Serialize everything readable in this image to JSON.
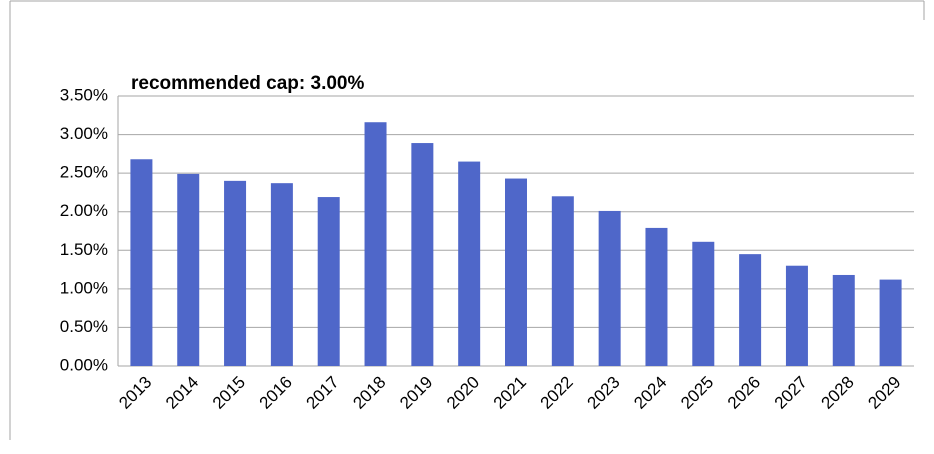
{
  "chart_data": {
    "type": "bar",
    "annotations": [
      "recommended cap: 3.00%"
    ],
    "categories": [
      "2013",
      "2014",
      "2015",
      "2016",
      "2017",
      "2018",
      "2019",
      "2020",
      "2021",
      "2022",
      "2023",
      "2024",
      "2025",
      "2026",
      "2027",
      "2028",
      "2029"
    ],
    "values": [
      2.68,
      2.49,
      2.4,
      2.37,
      2.19,
      3.16,
      2.89,
      2.65,
      2.43,
      2.2,
      2.01,
      1.79,
      1.61,
      1.45,
      1.3,
      1.18,
      1.12
    ],
    "color": "#4f67c9",
    "ylim": [
      0,
      3.5
    ],
    "yticks": [
      {
        "value": 0,
        "label": "0.00%"
      },
      {
        "value": 0.5,
        "label": "0.50%"
      },
      {
        "value": 1,
        "label": "1.00%"
      },
      {
        "value": 1.5,
        "label": "1.50%"
      },
      {
        "value": 2,
        "label": "2.00%"
      },
      {
        "value": 2.5,
        "label": "2.50%"
      },
      {
        "value": 3,
        "label": "3.00%"
      },
      {
        "value": 3.5,
        "label": "3.50%"
      }
    ],
    "grid": true
  }
}
